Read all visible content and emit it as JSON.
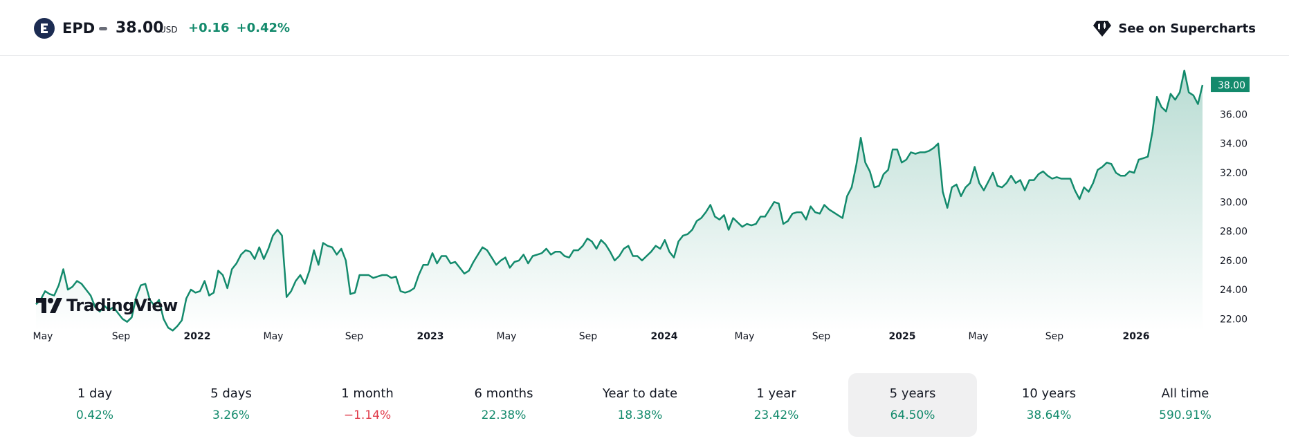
{
  "header": {
    "symbol": "EPD",
    "price": "38.00",
    "currency": "USD",
    "change_abs": "+0.16",
    "change_pct": "+0.42%",
    "supercharts_label": "See on Supercharts",
    "logo_icon": "epd-logo-icon",
    "supercharts_icon": "tradingview-diamond-icon",
    "accent_color": "#138a6c"
  },
  "watermark": {
    "text": "TradingView"
  },
  "chart_data": {
    "type": "area",
    "x_ticks": [
      "May",
      "Sep",
      "2022",
      "May",
      "Sep",
      "2023",
      "May",
      "Sep",
      "2024",
      "May",
      "Sep",
      "2025",
      "May",
      "Sep",
      "2026"
    ],
    "x_ticks_bold": [
      false,
      false,
      true,
      false,
      false,
      true,
      false,
      false,
      true,
      false,
      false,
      true,
      false,
      false,
      true
    ],
    "y_ticks": [
      "36.00",
      "34.00",
      "32.00",
      "30.00",
      "28.00",
      "26.00",
      "24.00",
      "22.00"
    ],
    "ylim": [
      21.5,
      39.0
    ],
    "last_value_label": "38.00",
    "line_color": "#138a6c",
    "values": [
      23.0,
      23.3,
      23.9,
      23.7,
      23.6,
      24.3,
      25.4,
      24.0,
      24.2,
      24.6,
      24.4,
      24.0,
      23.6,
      22.8,
      22.5,
      22.9,
      22.6,
      22.8,
      22.4,
      22.0,
      21.8,
      22.1,
      23.5,
      24.3,
      24.4,
      23.3,
      22.9,
      23.3,
      22.0,
      21.4,
      21.2,
      21.5,
      21.9,
      23.4,
      24.0,
      23.8,
      23.9,
      24.6,
      23.6,
      23.8,
      25.3,
      25.0,
      24.1,
      25.4,
      25.8,
      26.4,
      26.7,
      26.6,
      26.1,
      26.9,
      26.1,
      26.8,
      27.7,
      28.1,
      27.7,
      23.5,
      23.9,
      24.6,
      25.0,
      24.4,
      25.3,
      26.7,
      25.7,
      27.2,
      27.0,
      26.9,
      26.4,
      26.8,
      26.0,
      23.7,
      23.8,
      25.0,
      25.0,
      25.0,
      24.8,
      24.9,
      25.0,
      25.0,
      24.8,
      24.9,
      23.9,
      23.8,
      23.9,
      24.1,
      25.0,
      25.7,
      25.7,
      26.5,
      25.8,
      26.3,
      26.3,
      25.8,
      25.9,
      25.5,
      25.1,
      25.3,
      25.9,
      26.4,
      26.9,
      26.7,
      26.2,
      25.7,
      26.0,
      26.2,
      25.5,
      25.9,
      26.0,
      26.4,
      25.8,
      26.3,
      26.4,
      26.5,
      26.8,
      26.4,
      26.6,
      26.6,
      26.3,
      26.2,
      26.7,
      26.7,
      27.0,
      27.5,
      27.3,
      26.8,
      27.4,
      27.1,
      26.6,
      26.0,
      26.3,
      26.8,
      27.0,
      26.3,
      26.3,
      26.0,
      26.3,
      26.6,
      27.0,
      26.8,
      27.4,
      26.6,
      26.2,
      27.3,
      27.7,
      27.8,
      28.1,
      28.7,
      28.9,
      29.3,
      29.8,
      29.0,
      28.8,
      29.1,
      28.1,
      28.9,
      28.6,
      28.3,
      28.5,
      28.4,
      28.5,
      29.0,
      29.0,
      29.5,
      30.0,
      29.9,
      28.5,
      28.7,
      29.2,
      29.3,
      29.3,
      28.8,
      29.7,
      29.3,
      29.2,
      29.8,
      29.5,
      29.3,
      29.1,
      28.9,
      30.4,
      31.0,
      32.5,
      34.4,
      32.7,
      32.1,
      31.0,
      31.1,
      31.9,
      32.2,
      33.6,
      33.6,
      32.7,
      32.9,
      33.4,
      33.3,
      33.4,
      33.4,
      33.5,
      33.7,
      34.0,
      30.7,
      29.6,
      31.0,
      31.2,
      30.4,
      31.0,
      31.3,
      32.4,
      31.3,
      30.8,
      31.4,
      32.0,
      31.1,
      31.0,
      31.3,
      31.8,
      31.3,
      31.5,
      30.8,
      31.5,
      31.5,
      31.9,
      32.1,
      31.8,
      31.6,
      31.7,
      31.6,
      31.6,
      31.6,
      30.8,
      30.2,
      31.0,
      30.7,
      31.3,
      32.2,
      32.4,
      32.7,
      32.6,
      32.0,
      31.8,
      31.8,
      32.1,
      32.0,
      32.9,
      33.0,
      33.1,
      34.8,
      37.2,
      36.5,
      36.2,
      37.4,
      37.0,
      37.5,
      39.0,
      37.5,
      37.3,
      36.7,
      38.0
    ]
  },
  "periods": [
    {
      "label": "1 day",
      "value": "0.42%",
      "negative": false,
      "active": false
    },
    {
      "label": "5 days",
      "value": "3.26%",
      "negative": false,
      "active": false
    },
    {
      "label": "1 month",
      "value": "−1.14%",
      "negative": true,
      "active": false
    },
    {
      "label": "6 months",
      "value": "22.38%",
      "negative": false,
      "active": false
    },
    {
      "label": "Year to date",
      "value": "18.38%",
      "negative": false,
      "active": false
    },
    {
      "label": "1 year",
      "value": "23.42%",
      "negative": false,
      "active": false
    },
    {
      "label": "5 years",
      "value": "64.50%",
      "negative": false,
      "active": true
    },
    {
      "label": "10 years",
      "value": "38.64%",
      "negative": false,
      "active": false
    },
    {
      "label": "All time",
      "value": "590.91%",
      "negative": false,
      "active": false
    }
  ]
}
